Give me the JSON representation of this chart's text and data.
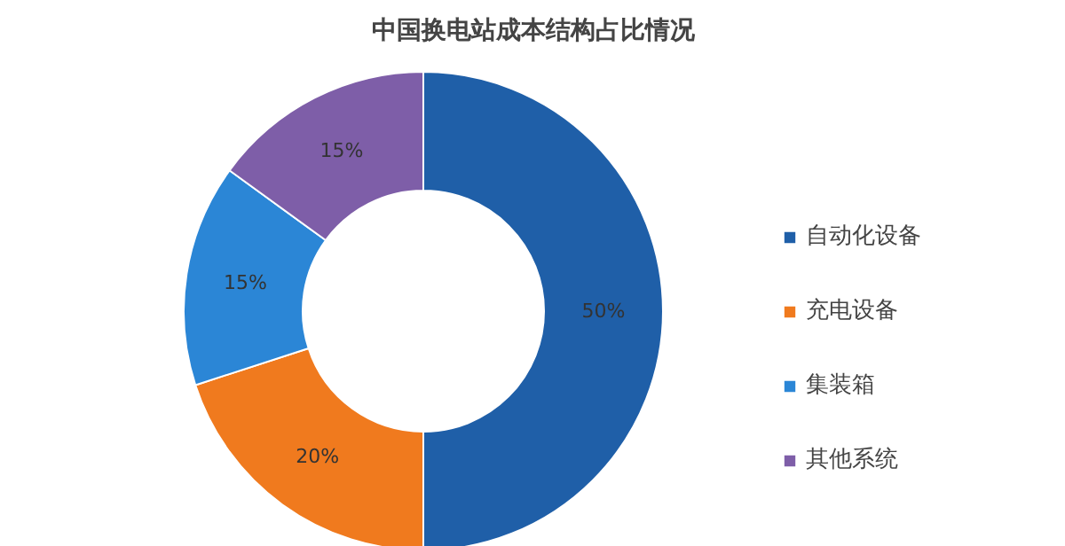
{
  "chart_data": {
    "type": "donut",
    "title": "中国换电站成本结构占比情况",
    "categories": [
      "自动化设备",
      "充电设备",
      "集装箱",
      "其他系统"
    ],
    "values": [
      50,
      20,
      15,
      15
    ],
    "colors": [
      "#1f5fa8",
      "#f07a1e",
      "#2b86d6",
      "#7e5ea8"
    ],
    "value_labels": [
      "50%",
      "20%",
      "15%",
      "15%"
    ],
    "legend": "right"
  }
}
